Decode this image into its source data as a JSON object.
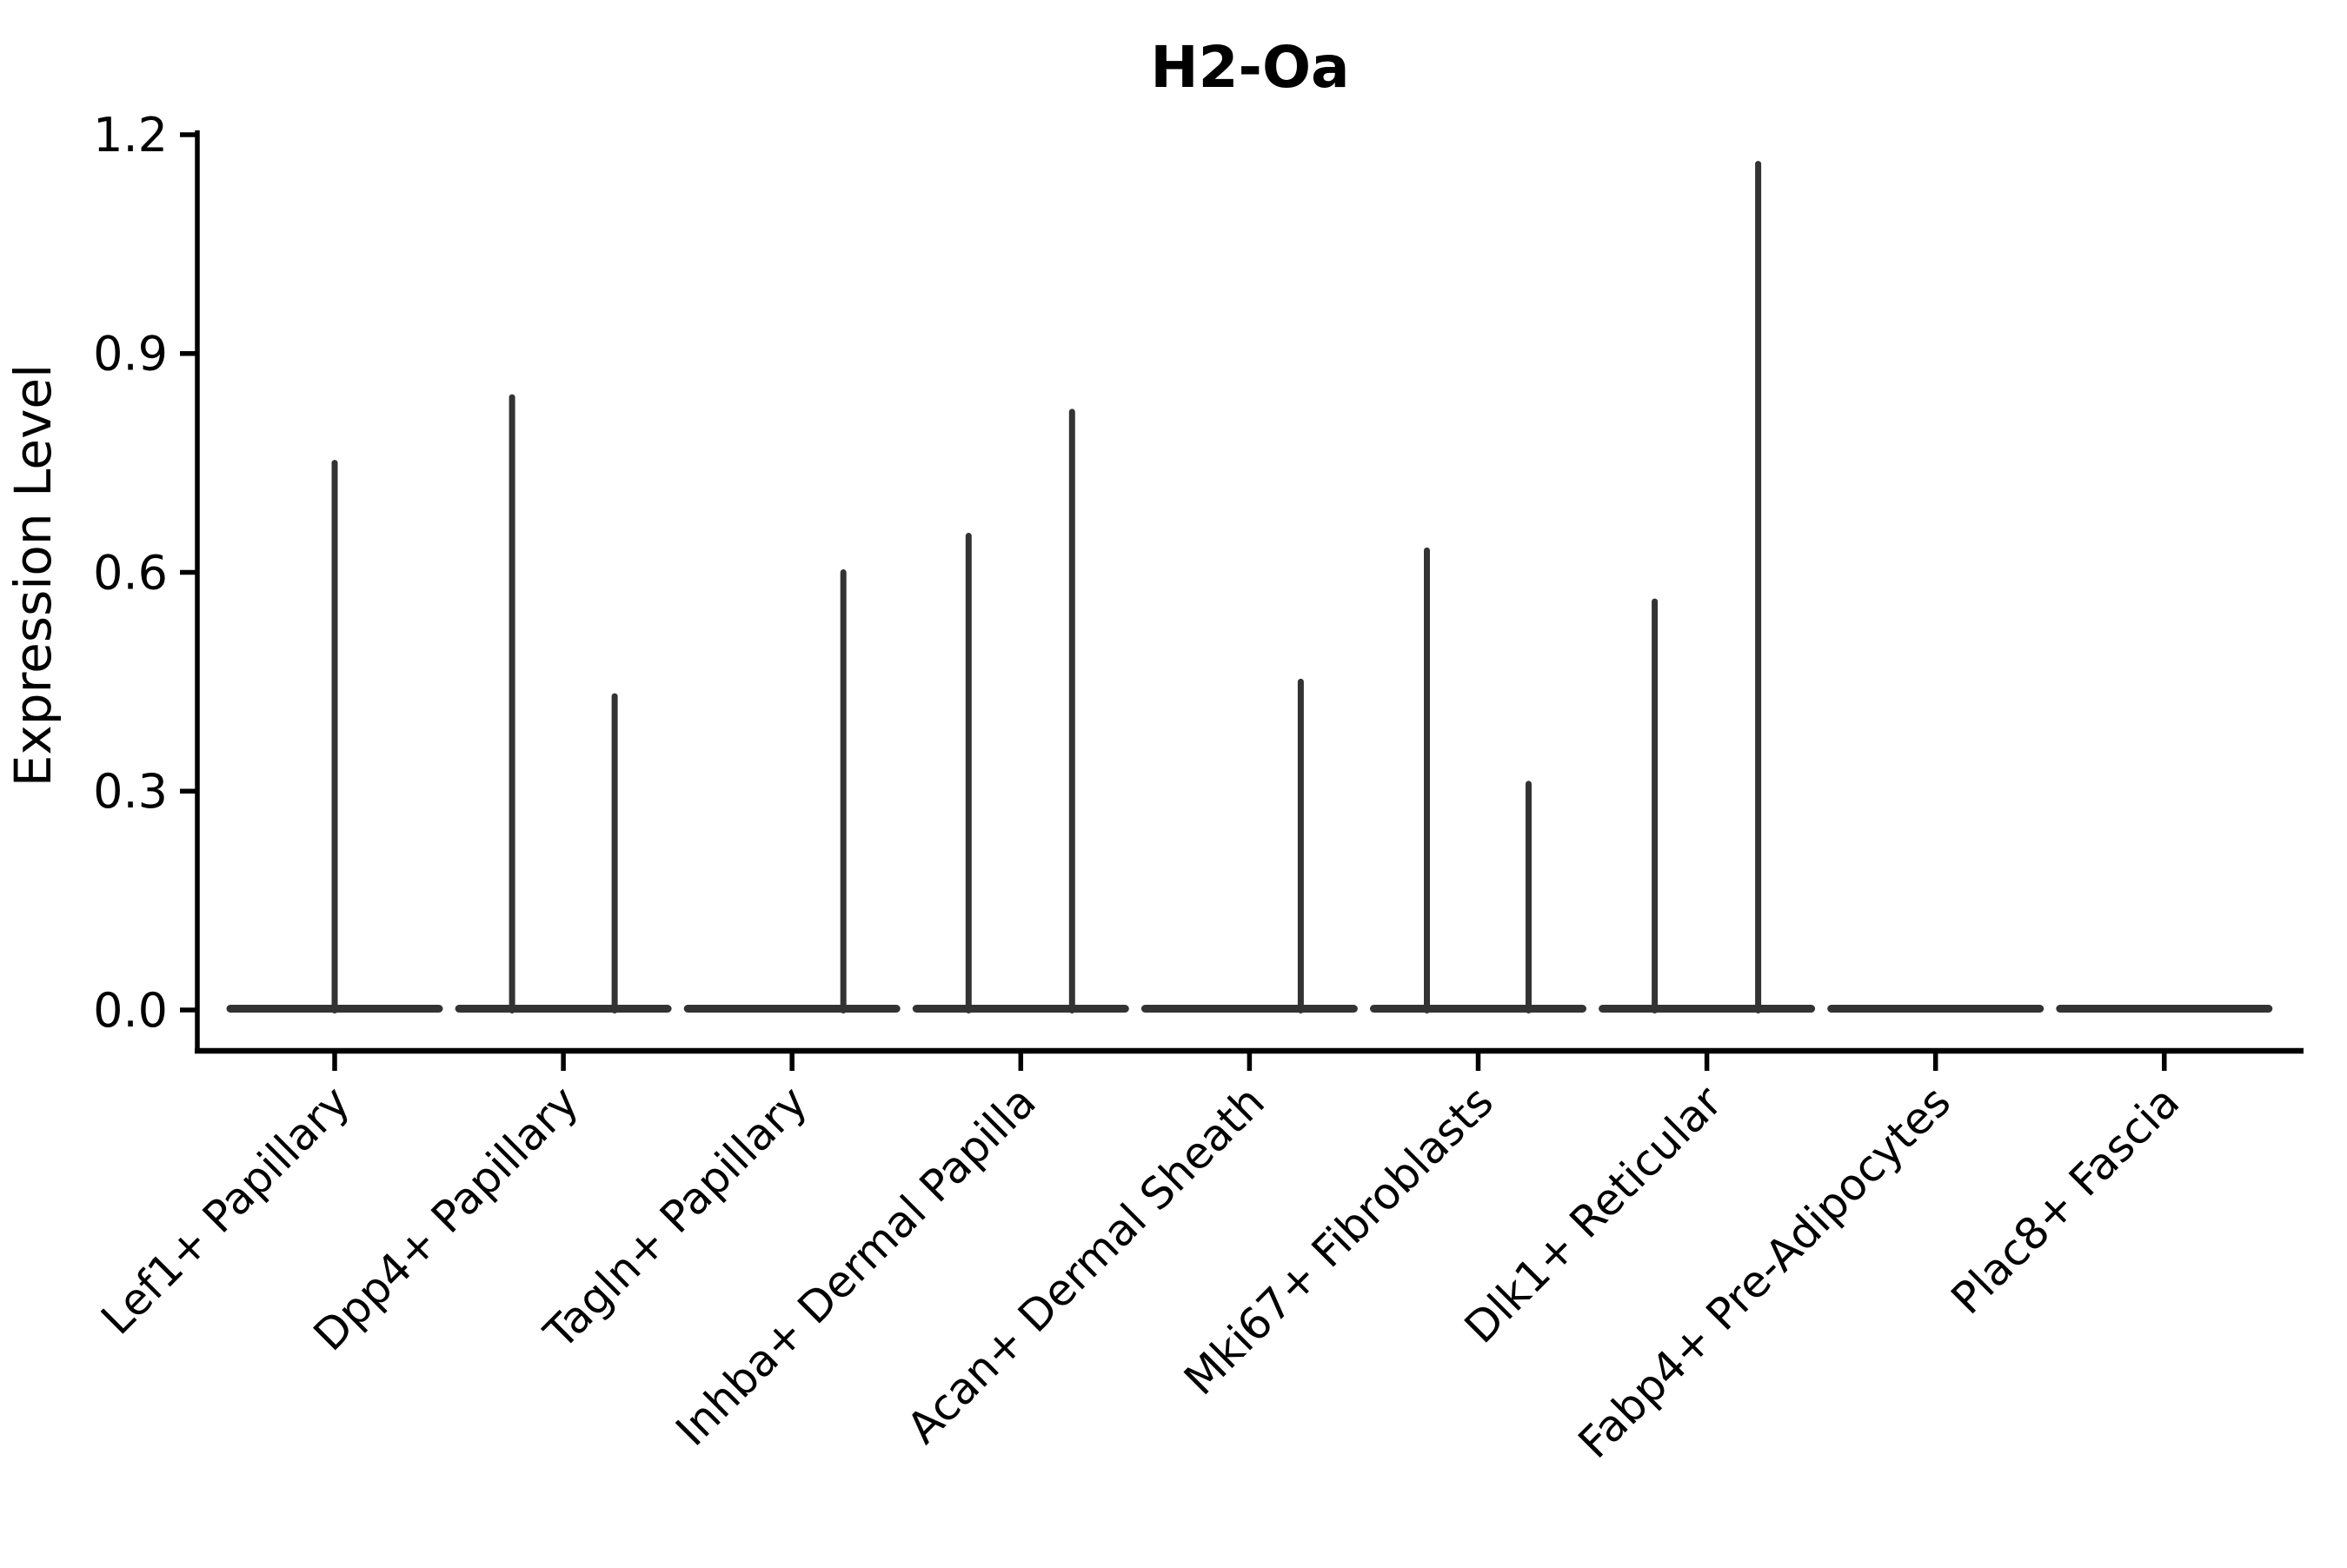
{
  "title": "H2-Oa",
  "y_axis": {
    "label": "Expression Level",
    "tick_labels": [
      "0.0",
      "0.3",
      "0.6",
      "0.9",
      "1.2"
    ],
    "tick_values": [
      0.0,
      0.3,
      0.6,
      0.9,
      1.2
    ]
  },
  "chart_data": {
    "type": "violin",
    "title": "H2-Oa",
    "xlabel": "",
    "ylabel": "Expression Level",
    "ylim": [
      0.0,
      1.2
    ],
    "y_ticks": [
      0.0,
      0.3,
      0.6,
      0.9,
      1.2
    ],
    "grid": false,
    "legend": "none",
    "line_color": "#333333",
    "categories": [
      "Lef1+ Papillary",
      "Dpp4+ Papillary",
      "Tagln+ Papillary",
      "Inhba+ Dermal Papilla",
      "Acan+ Dermal Sheath",
      "Mki67+ Fibroblasts",
      "Dlk1+ Reticular",
      "Fabp4+ Pre-Adipocytes",
      "Plac8+ Fascia"
    ],
    "violins": [
      {
        "category": "Lef1+ Papillary",
        "baseline": 0.0,
        "spikes": [
          {
            "offset": 0,
            "max": 0.75
          }
        ]
      },
      {
        "category": "Dpp4+ Papillary",
        "baseline": 0.0,
        "spikes": [
          {
            "offset": -59,
            "max": 0.84
          },
          {
            "offset": 59,
            "max": 0.43
          }
        ]
      },
      {
        "category": "Tagln+ Papillary",
        "baseline": 0.0,
        "spikes": [
          {
            "offset": 59,
            "max": 0.6
          }
        ]
      },
      {
        "category": "Inhba+ Dermal Papilla",
        "baseline": 0.0,
        "spikes": [
          {
            "offset": -60,
            "max": 0.65
          },
          {
            "offset": 59,
            "max": 0.82
          }
        ]
      },
      {
        "category": "Acan+ Dermal Sheath",
        "baseline": 0.0,
        "spikes": [
          {
            "offset": 59,
            "max": 0.45
          }
        ]
      },
      {
        "category": "Mki67+ Fibroblasts",
        "baseline": 0.0,
        "spikes": [
          {
            "offset": -59,
            "max": 0.63
          },
          {
            "offset": 58,
            "max": 0.31
          }
        ]
      },
      {
        "category": "Dlk1+ Reticular",
        "baseline": 0.0,
        "spikes": [
          {
            "offset": -60,
            "max": 0.56
          },
          {
            "offset": 59,
            "max": 1.16
          }
        ]
      },
      {
        "category": "Fabp4+ Pre-Adipocytes",
        "baseline": 0.0,
        "spikes": []
      },
      {
        "category": "Plac8+ Fascia",
        "baseline": 0.0,
        "spikes": []
      }
    ]
  }
}
